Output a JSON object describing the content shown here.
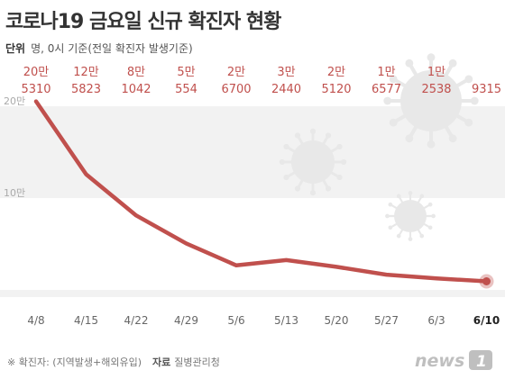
{
  "header": {
    "title": "코로나19 금요일 신규 확진자 현황",
    "unit_label": "단위",
    "unit_text": "명, 0시 기준(전일 확진자 발생기준)"
  },
  "footer": {
    "note": "※ 확진자: (지역발생+해외유입)",
    "source_label": "자료",
    "source": "질병관리청",
    "logo_text": "news1"
  },
  "colors": {
    "line": "#c0504d",
    "label": "#c0504d",
    "band": "#f2f2f2",
    "virus": "#e8e8e8",
    "axis_text": "#666666"
  },
  "chart_data": {
    "type": "line",
    "title": "코로나19 금요일 신규 확진자 현황",
    "xlabel": "",
    "ylabel": "",
    "categories": [
      "4/8",
      "4/15",
      "4/22",
      "4/29",
      "5/6",
      "5/13",
      "5/20",
      "5/27",
      "6/3",
      "6/10"
    ],
    "series": [
      {
        "values": [
          205310,
          125823,
          81042,
          50554,
          26700,
          32440,
          25120,
          16577,
          12538,
          9315
        ],
        "labels_top": [
          "20만",
          "12만",
          "8만",
          "5만",
          "2만",
          "3만",
          "2만",
          "1만",
          "1만",
          ""
        ],
        "labels_bottom": [
          "5310",
          "5823",
          "1042",
          "554",
          "6700",
          "2440",
          "5120",
          "6577",
          "2538",
          "9315"
        ]
      }
    ],
    "y_ticks": [
      {
        "value": 200000,
        "label": "20만"
      },
      {
        "value": 100000,
        "label": "10만"
      }
    ],
    "ylim": [
      0,
      230000
    ],
    "highlight_category": "6/10",
    "grid": "alternating bands"
  }
}
